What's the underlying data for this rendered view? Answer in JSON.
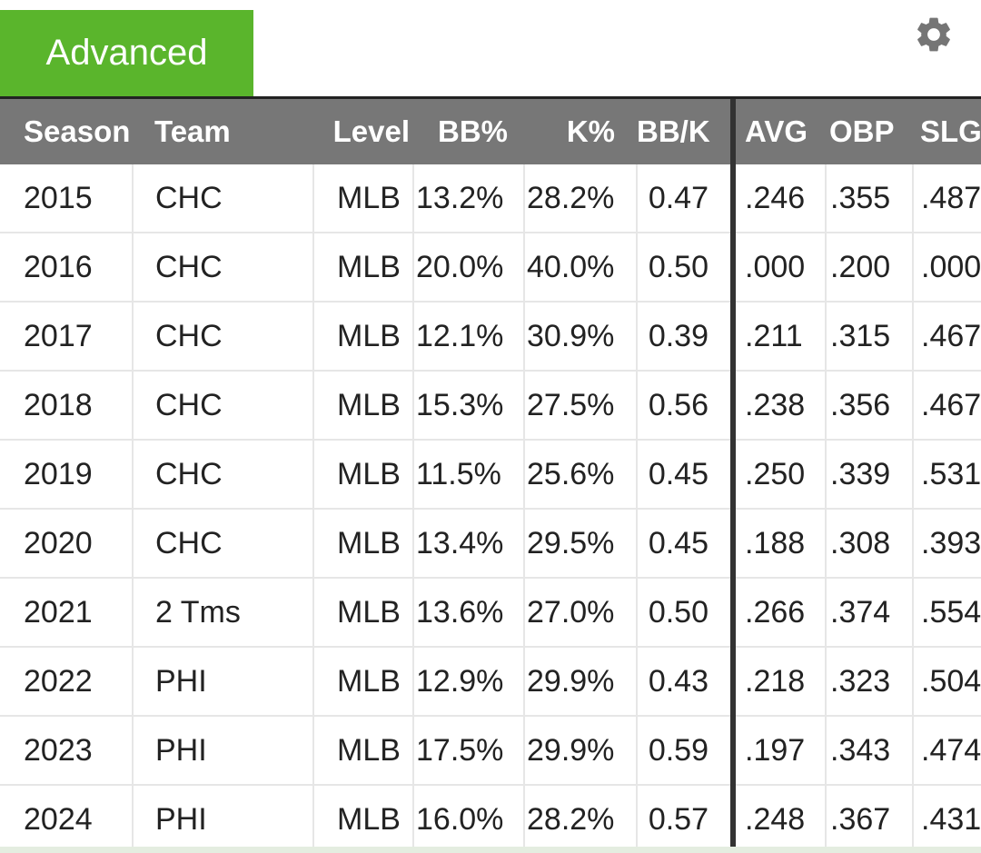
{
  "tabs": {
    "advanced_label": "Advanced"
  },
  "icons": {
    "settings": "gear-icon"
  },
  "colors": {
    "tab_active": "#5ab52c",
    "header_bg": "#777777"
  },
  "table": {
    "headers": [
      "Season",
      "Team",
      "Level",
      "BB%",
      "K%",
      "BB/K",
      "AVG",
      "OBP",
      "SLG"
    ],
    "rows": [
      [
        "2015",
        "CHC",
        "MLB",
        "13.2%",
        "28.2%",
        "0.47",
        ".246",
        ".355",
        ".487"
      ],
      [
        "2016",
        "CHC",
        "MLB",
        "20.0%",
        "40.0%",
        "0.50",
        ".000",
        ".200",
        ".000"
      ],
      [
        "2017",
        "CHC",
        "MLB",
        "12.1%",
        "30.9%",
        "0.39",
        ".211",
        ".315",
        ".467"
      ],
      [
        "2018",
        "CHC",
        "MLB",
        "15.3%",
        "27.5%",
        "0.56",
        ".238",
        ".356",
        ".467"
      ],
      [
        "2019",
        "CHC",
        "MLB",
        "11.5%",
        "25.6%",
        "0.45",
        ".250",
        ".339",
        ".531"
      ],
      [
        "2020",
        "CHC",
        "MLB",
        "13.4%",
        "29.5%",
        "0.45",
        ".188",
        ".308",
        ".393"
      ],
      [
        "2021",
        "2 Tms",
        "MLB",
        "13.6%",
        "27.0%",
        "0.50",
        ".266",
        ".374",
        ".554"
      ],
      [
        "2022",
        "PHI",
        "MLB",
        "12.9%",
        "29.9%",
        "0.43",
        ".218",
        ".323",
        ".504"
      ],
      [
        "2023",
        "PHI",
        "MLB",
        "17.5%",
        "29.9%",
        "0.59",
        ".197",
        ".343",
        ".474"
      ],
      [
        "2024",
        "PHI",
        "MLB",
        "16.0%",
        "28.2%",
        "0.57",
        ".248",
        ".367",
        ".431"
      ]
    ]
  }
}
